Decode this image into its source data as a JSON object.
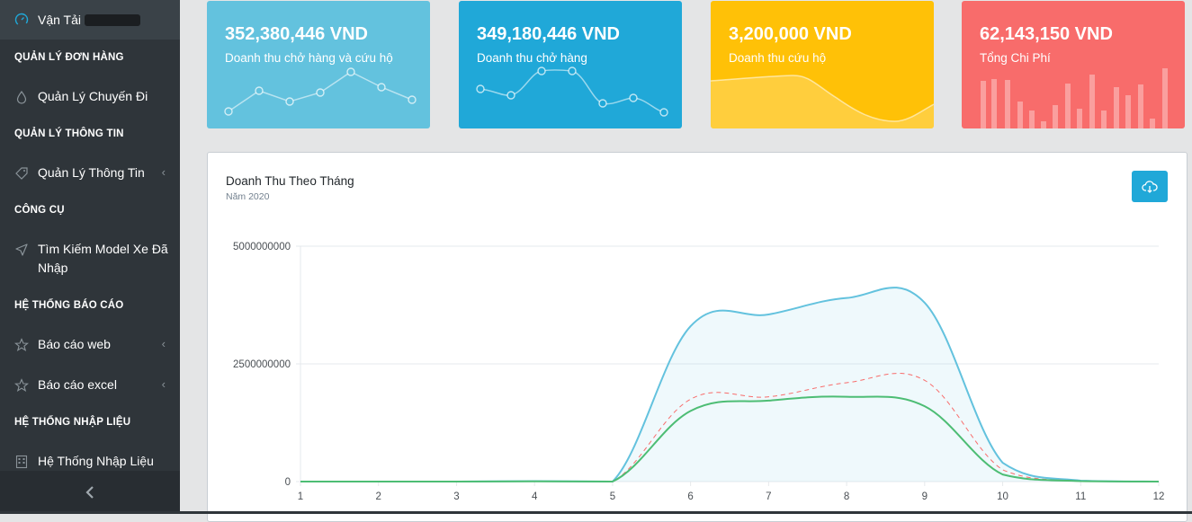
{
  "sidebar": {
    "brand": "Vận Tải",
    "sections": [
      {
        "title": "QUẢN LÝ ĐƠN HÀNG",
        "items": [
          {
            "label": "Quản Lý Chuyến Đi",
            "icon": "drop-icon",
            "has_submenu": false
          }
        ]
      },
      {
        "title": "QUẢN LÝ THÔNG TIN",
        "items": [
          {
            "label": "Quản Lý Thông Tin",
            "icon": "tag-icon",
            "has_submenu": true
          }
        ]
      },
      {
        "title": "CÔNG CỤ",
        "items": [
          {
            "label": "Tìm Kiếm Model Xe Đã Nhập",
            "icon": "send-icon",
            "has_submenu": false
          }
        ]
      },
      {
        "title": "HỆ THỐNG BÁO CÁO",
        "items": [
          {
            "label": "Báo cáo web",
            "icon": "star-icon",
            "has_submenu": true
          },
          {
            "label": "Báo cáo excel",
            "icon": "star-icon",
            "has_submenu": true
          }
        ]
      },
      {
        "title": "HỆ THỐNG NHẬP LIỆU",
        "items": [
          {
            "label": "Hệ Thống Nhập Liệu",
            "icon": "calculator-icon",
            "has_submenu": false
          }
        ]
      }
    ],
    "chevron": "‹",
    "minimize_icon": "chevron-left-icon"
  },
  "cards": [
    {
      "value": "352,380,446 VND",
      "label": "Doanh thu chở hàng và cứu hộ",
      "color": "#63c2de"
    },
    {
      "value": "349,180,446 VND",
      "label": "Doanh thu chở hàng",
      "color": "#20a8d8"
    },
    {
      "value": "3,200,000 VND",
      "label": "Doanh thu cứu hộ",
      "color": "#ffc107"
    },
    {
      "value": "62,143,150 VND",
      "label": "Tổng Chi Phí",
      "color": "#f86c6b"
    }
  ],
  "panel": {
    "title": "Doanh Thu Theo Tháng",
    "subtitle": "Năm 2020",
    "download_icon": "cloud-download-icon"
  },
  "chart_data": {
    "type": "area",
    "x": [
      1,
      2,
      3,
      4,
      5,
      6,
      7,
      8,
      9,
      10,
      11,
      12
    ],
    "ylim": [
      0,
      5000000000
    ],
    "yticks": [
      "0",
      "2500000000",
      "5000000000"
    ],
    "grid": true,
    "series": [
      {
        "values": [
          0,
          0,
          0,
          10000000,
          0,
          3300000000,
          3550000000,
          3900000000,
          3800000000,
          400000000,
          20000000,
          0
        ],
        "color": "#63c2de",
        "fill": true
      },
      {
        "values": [
          0,
          0,
          0,
          5000000,
          0,
          1750000000,
          1800000000,
          2100000000,
          2150000000,
          250000000,
          10000000,
          0
        ],
        "color": "#f86c6b",
        "dashed": true
      },
      {
        "values": [
          0,
          0,
          0,
          5000000,
          0,
          1500000000,
          1720000000,
          1800000000,
          1600000000,
          150000000,
          10000000,
          0
        ],
        "color": "#4dbd74"
      }
    ]
  }
}
